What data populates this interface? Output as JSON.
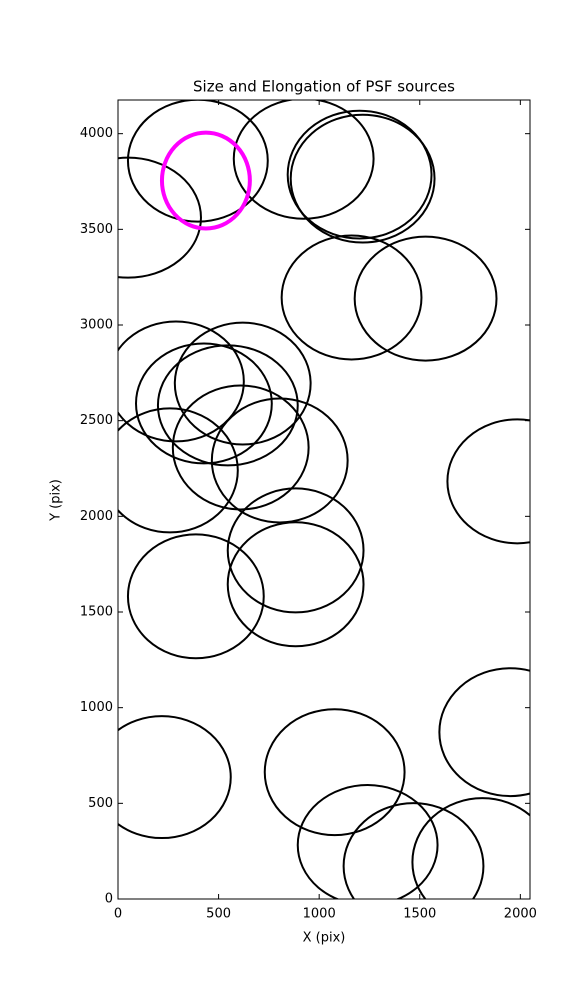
{
  "chart_data": {
    "type": "ellipse",
    "title": "Size and Elongation of PSF sources",
    "x_label": "X (pix)",
    "y_label": "Y (pix)",
    "xlim": [
      0,
      2048
    ],
    "ylim": [
      0,
      4176
    ],
    "xticks": [
      0,
      500,
      1000,
      1500,
      2000
    ],
    "yticks": [
      0,
      500,
      1000,
      1500,
      2000,
      2500,
      3000,
      3500,
      4000
    ],
    "series": [
      {
        "color": "#000000",
        "x": [
          397,
          50,
          923,
          1201,
          1216,
          1161,
          1529,
          288,
          620,
          427,
          546,
          610,
          258,
          804,
          1985,
          883,
          883,
          387,
          1950,
          218,
          1077,
          1241,
          1469,
          1811
        ],
        "y": [
          3859,
          3561,
          3869,
          3786,
          3765,
          3144,
          3138,
          2705,
          2694,
          2590,
          2580,
          2360,
          2240,
          2292,
          2183,
          1822,
          1645,
          1582,
          872,
          637,
          663,
          282,
          172,
          193
        ],
        "width": [
          695,
          725,
          695,
          715,
          715,
          695,
          705,
          675,
          675,
          675,
          695,
          675,
          675,
          675,
          695,
          675,
          675,
          675,
          705,
          685,
          695,
          695,
          695,
          695
        ],
        "height": [
          637,
          627,
          627,
          668,
          668,
          648,
          648,
          627,
          637,
          627,
          627,
          648,
          648,
          648,
          648,
          648,
          648,
          648,
          668,
          637,
          658,
          627,
          658,
          668
        ]
      },
      {
        "color": "#ff00ff",
        "x": [
          437
        ],
        "y": [
          3755
        ],
        "width": [
          437
        ],
        "height": [
          501
        ]
      }
    ]
  }
}
